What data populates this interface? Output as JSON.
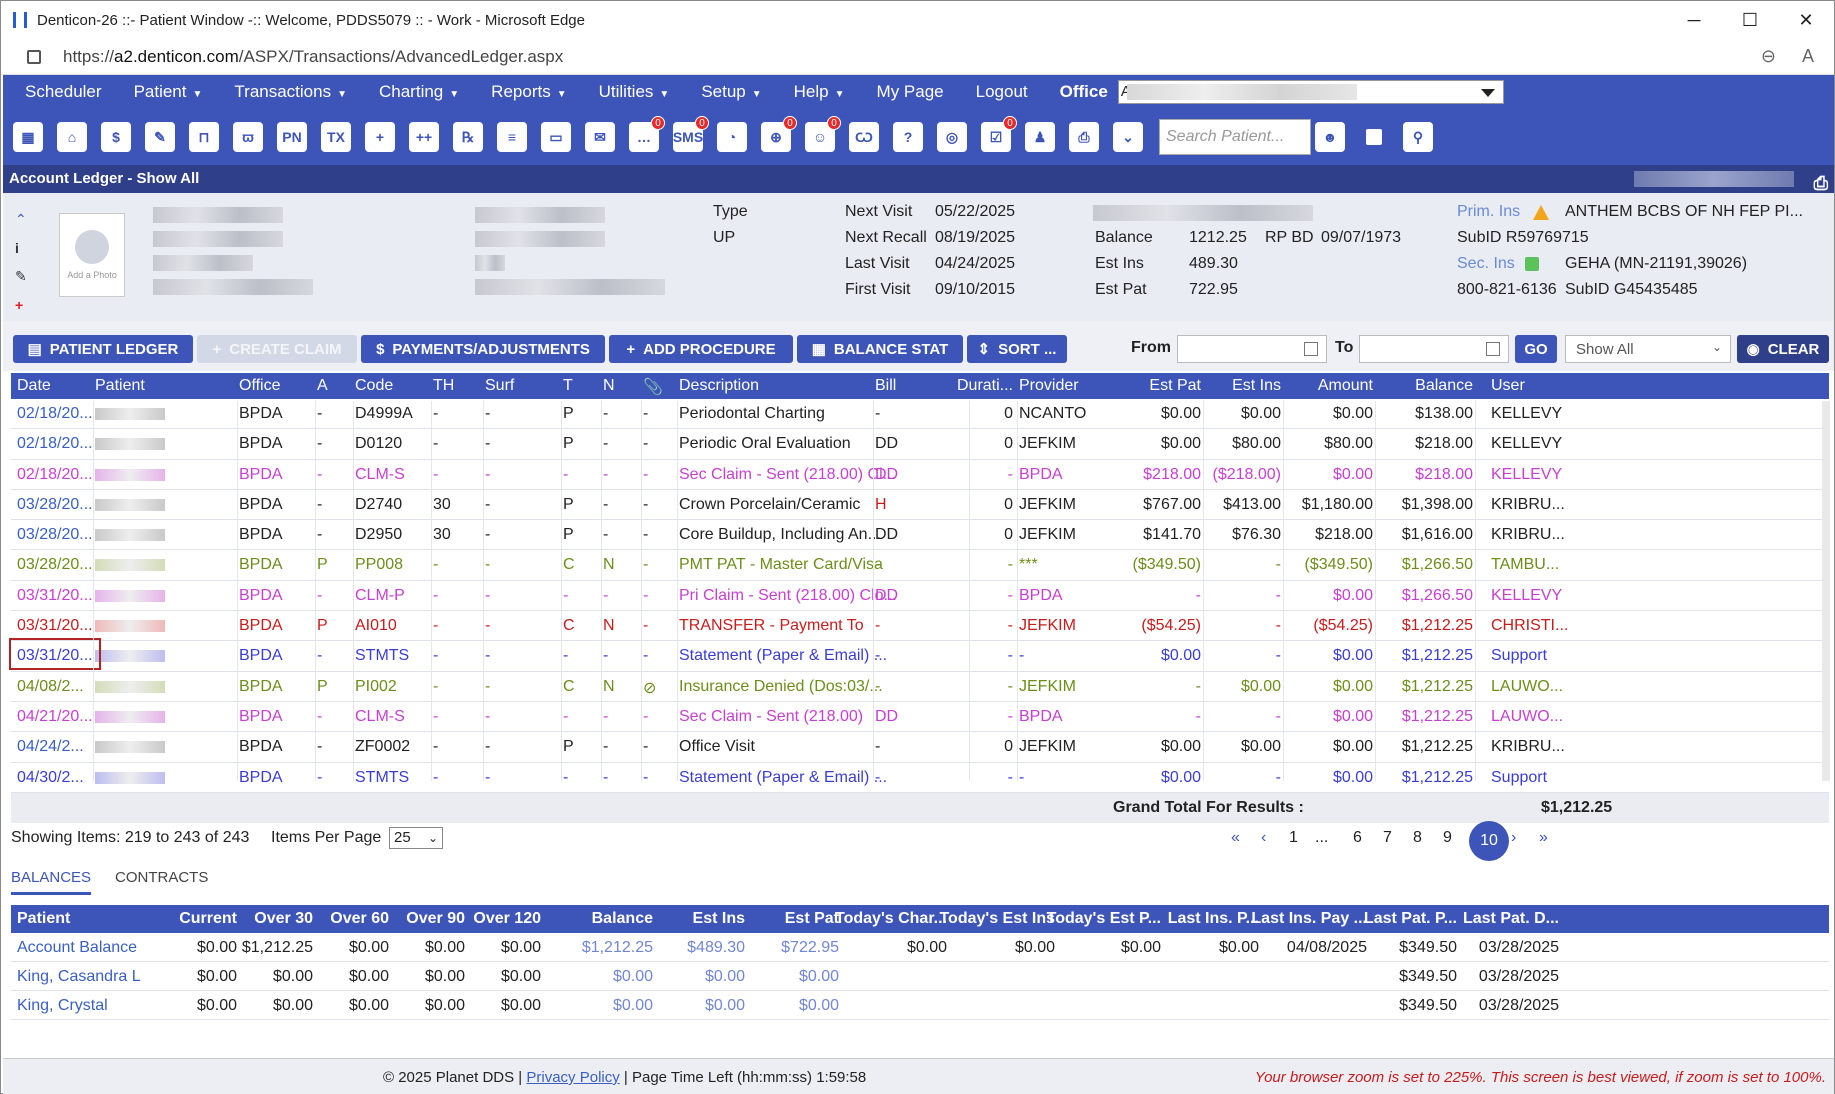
{
  "window": {
    "title": "Denticon-26 ::- Patient Window -:: Welcome, PDDS5079 :: - Work - Microsoft Edge",
    "controls": [
      "─",
      "☐",
      "✕"
    ]
  },
  "address": {
    "url_prefix": "https://",
    "url_host": "a2.denticon.com",
    "url_path": "/ASPX/Transactions/AdvancedLedger.aspx"
  },
  "menu": {
    "items": [
      {
        "label": "Scheduler",
        "caret": false
      },
      {
        "label": "Patient",
        "caret": true
      },
      {
        "label": "Transactions",
        "caret": true
      },
      {
        "label": "Charting",
        "caret": true
      },
      {
        "label": "Reports",
        "caret": true
      },
      {
        "label": "Utilities",
        "caret": true
      },
      {
        "label": "Setup",
        "caret": true
      },
      {
        "label": "Help",
        "caret": true
      },
      {
        "label": "My Page",
        "caret": false
      },
      {
        "label": "Logout",
        "caret": false
      }
    ],
    "office_label": "Office",
    "office_value": "A"
  },
  "toolbar": {
    "icons": [
      {
        "name": "calendar-icon",
        "glyph": "▦",
        "badge": ""
      },
      {
        "name": "home-icon",
        "glyph": "⌂",
        "badge": ""
      },
      {
        "name": "dollar-icon",
        "glyph": "$",
        "badge": ""
      },
      {
        "name": "chart-edit-icon",
        "glyph": "✎",
        "badge": ""
      },
      {
        "name": "tooth-chart-icon",
        "glyph": "⊓",
        "badge": ""
      },
      {
        "name": "perio-icon",
        "glyph": "ϖ",
        "badge": ""
      },
      {
        "name": "pn-icon",
        "glyph": "PN",
        "badge": ""
      },
      {
        "name": "tx-icon",
        "glyph": "TX",
        "badge": ""
      },
      {
        "name": "add-patient-icon",
        "glyph": "+",
        "badge": ""
      },
      {
        "name": "add-family-icon",
        "glyph": "++",
        "badge": ""
      },
      {
        "name": "rx-icon",
        "glyph": "℞",
        "badge": ""
      },
      {
        "name": "notes-icon",
        "glyph": "≡",
        "badge": ""
      },
      {
        "name": "scanner-icon",
        "glyph": "▭",
        "badge": ""
      },
      {
        "name": "mail-icon",
        "glyph": "✉",
        "badge": ""
      },
      {
        "name": "messages-icon",
        "glyph": "…",
        "badge": "0"
      },
      {
        "name": "sms-icon",
        "glyph": "SMS",
        "badge": "0"
      },
      {
        "name": "clock-icon",
        "glyph": "◔",
        "badge": ""
      },
      {
        "name": "web-icon",
        "glyph": "⊕",
        "badge": "0"
      },
      {
        "name": "support-icon",
        "glyph": "☺",
        "badge": "0"
      },
      {
        "name": "tooth-icon",
        "glyph": "Ѡ",
        "badge": ""
      },
      {
        "name": "tooth-help-icon",
        "glyph": "?",
        "badge": ""
      },
      {
        "name": "globe-icon",
        "glyph": "◎",
        "badge": ""
      },
      {
        "name": "forms-icon",
        "glyph": "☑",
        "badge": "0"
      },
      {
        "name": "family-icon",
        "glyph": "♟",
        "badge": ""
      },
      {
        "name": "print-icon",
        "glyph": "⎙",
        "badge": ""
      },
      {
        "name": "collapse-icon",
        "glyph": "⌄",
        "badge": ""
      }
    ],
    "search_placeholder": "Search Patient..."
  },
  "page_header": {
    "title": "Account Ledger - Show All"
  },
  "patient": {
    "photo_caption": "Add a Photo",
    "type_label": "Type",
    "type_value": "UP",
    "next_visit_label": "Next Visit",
    "next_visit": "05/22/2025",
    "next_recall_label": "Next Recall",
    "next_recall": "08/19/2025",
    "last_visit_label": "Last Visit",
    "last_visit": "04/24/2025",
    "first_visit_label": "First Visit",
    "first_visit": "09/10/2015",
    "balance_label": "Balance",
    "balance": "1212.25",
    "rp_bd_label": "RP BD",
    "rp_bd": "09/07/1973",
    "est_ins_label": "Est Ins",
    "est_ins": "489.30",
    "est_pat_label": "Est Pat",
    "est_pat": "722.95",
    "prim_ins_label": "Prim. Ins",
    "prim_ins": "ANTHEM BCBS OF NH FEP PI...",
    "subid1": "SubID R59769715",
    "sec_ins_label": "Sec. Ins",
    "sec_ins": "GEHA (MN-21191,39026)",
    "phone": "800-821-6136",
    "subid2": "SubID G45435485"
  },
  "actions": {
    "patient_ledger": "PATIENT LEDGER",
    "create_claim": "CREATE CLAIM",
    "payments": "PAYMENTS/ADJUSTMENTS",
    "add_procedure": "ADD PROCEDURE",
    "balance_stat": "BALANCE STAT",
    "sort": "SORT ...",
    "from_label": "From",
    "to_label": "To",
    "go": "GO",
    "show_value": "Show All",
    "clear": "CLEAR"
  },
  "ledger": {
    "columns": [
      "Date",
      "Patient",
      "Office",
      "A",
      "Code",
      "TH",
      "Surf",
      "T",
      "N",
      "📎",
      "Description",
      "Bill",
      "Durati...",
      "Provider",
      "Est Pat",
      "Est Ins",
      "Amount",
      "Balance",
      "User"
    ],
    "rows": [
      {
        "cls": "c-black",
        "pc": "#c9c9c9",
        "date": "02/18/20...",
        "office": "BPDA",
        "a": "-",
        "code": "D4999A",
        "th": "-",
        "surf": "-",
        "t": "P",
        "n": "-",
        "clip": "-",
        "desc": "Periodontal Charting",
        "bill": "-",
        "dur": "0",
        "prov": "NCANTO",
        "estpat": "$0.00",
        "estins": "$0.00",
        "amt": "$0.00",
        "bal": "$138.00",
        "user": "KELLEVY"
      },
      {
        "cls": "c-black",
        "pc": "#c9c9c9",
        "date": "02/18/20...",
        "office": "BPDA",
        "a": "-",
        "code": "D0120",
        "th": "-",
        "surf": "-",
        "t": "P",
        "n": "-",
        "clip": "-",
        "desc": "Periodic Oral Evaluation",
        "bill": "DD",
        "dur": "0",
        "prov": "JEFKIM",
        "estpat": "$0.00",
        "estins": "$80.00",
        "amt": "$80.00",
        "bal": "$218.00",
        "user": "KELLEVY"
      },
      {
        "cls": "c-mag",
        "pc": "#e6b3ec",
        "date": "02/18/20...",
        "office": "BPDA",
        "a": "-",
        "code": "CLM-S",
        "th": "-",
        "surf": "-",
        "t": "-",
        "n": "-",
        "clip": "-",
        "desc": "Sec Claim - Sent (218.00) Cl...",
        "bill": "DD",
        "dur": "-",
        "prov": "BPDA",
        "estpat": "$218.00",
        "estins": "($218.00)",
        "amt": "$0.00",
        "bal": "$218.00",
        "user": "KELLEVY"
      },
      {
        "cls": "c-black",
        "pc": "#c9c9c9",
        "date": "03/28/20...",
        "office": "BPDA",
        "a": "-",
        "code": "D2740",
        "th": "30",
        "surf": "-",
        "t": "P",
        "n": "-",
        "clip": "-",
        "desc": "Crown Porcelain/Ceramic",
        "bill": "H",
        "billred": true,
        "dur": "0",
        "prov": "JEFKIM",
        "estpat": "$767.00",
        "estins": "$413.00",
        "amt": "$1,180.00",
        "bal": "$1,398.00",
        "user": "KRIBRU..."
      },
      {
        "cls": "c-black",
        "pc": "#c9c9c9",
        "date": "03/28/20...",
        "office": "BPDA",
        "a": "-",
        "code": "D2950",
        "th": "30",
        "surf": "-",
        "t": "P",
        "n": "-",
        "clip": "-",
        "desc": "Core Buildup, Including An...",
        "bill": "DD",
        "dur": "0",
        "prov": "JEFKIM",
        "estpat": "$141.70",
        "estins": "$76.30",
        "amt": "$218.00",
        "bal": "$1,616.00",
        "user": "KRIBRU..."
      },
      {
        "cls": "c-grn",
        "pc": "#d3dcb8",
        "date": "03/28/20...",
        "office": "BPDA",
        "a": "P",
        "code": "PP008",
        "th": "-",
        "surf": "-",
        "t": "C",
        "n": "N",
        "clip": "-",
        "desc": "PMT PAT - Master Card/Visa",
        "bill": "-",
        "dur": "-",
        "prov": "***",
        "estpat": "($349.50)",
        "estins": "-",
        "amt": "($349.50)",
        "bal": "$1,266.50",
        "user": "TAMBU..."
      },
      {
        "cls": "c-mag",
        "pc": "#e6b3ec",
        "date": "03/31/20...",
        "office": "BPDA",
        "a": "-",
        "code": "CLM-P",
        "th": "-",
        "surf": "-",
        "t": "-",
        "n": "-",
        "clip": "-",
        "desc": "Pri Claim - Sent (218.00) Clo...",
        "bill": "DD",
        "dur": "-",
        "prov": "BPDA",
        "estpat": "-",
        "estins": "-",
        "amt": "$0.00",
        "bal": "$1,266.50",
        "user": "KELLEVY"
      },
      {
        "cls": "c-red",
        "pc": "#efb9b9",
        "date": "03/31/20...",
        "office": "BPDA",
        "a": "P",
        "code": "AI010",
        "th": "-",
        "surf": "-",
        "t": "C",
        "n": "N",
        "clip": "-",
        "desc": "TRANSFER - Payment To",
        "bill": "-",
        "dur": "-",
        "prov": "JEFKIM",
        "estpat": "($54.25)",
        "estins": "-",
        "amt": "($54.25)",
        "bal": "$1,212.25",
        "user": "CHRISTI..."
      },
      {
        "cls": "c-blu",
        "pc": "#bdbdf0",
        "date": "03/31/20...",
        "office": "BPDA",
        "a": "-",
        "code": "STMTS",
        "th": "-",
        "surf": "-",
        "t": "-",
        "n": "-",
        "clip": "-",
        "desc": "Statement (Paper & Email) ...",
        "bill": "-",
        "dur": "-",
        "prov": "-",
        "estpat": "$0.00",
        "estins": "-",
        "amt": "$0.00",
        "bal": "$1,212.25",
        "user": "Support"
      },
      {
        "cls": "c-grn",
        "pc": "#d3dcb8",
        "date": "04/08/2...",
        "office": "BPDA",
        "a": "P",
        "code": "PI002",
        "th": "-",
        "surf": "-",
        "t": "C",
        "n": "N",
        "clip": "⊘",
        "desc": "Insurance Denied (Dos:03/...",
        "bill": "-",
        "dur": "-",
        "prov": "JEFKIM",
        "estpat": "-",
        "estins": "$0.00",
        "amt": "$0.00",
        "bal": "$1,212.25",
        "user": "LAUWO..."
      },
      {
        "cls": "c-mag",
        "pc": "#e6b3ec",
        "date": "04/21/20...",
        "office": "BPDA",
        "a": "-",
        "code": "CLM-S",
        "th": "-",
        "surf": "-",
        "t": "-",
        "n": "-",
        "clip": "-",
        "desc": "Sec Claim - Sent (218.00)",
        "bill": "DD",
        "dur": "-",
        "prov": "BPDA",
        "estpat": "-",
        "estins": "-",
        "amt": "$0.00",
        "bal": "$1,212.25",
        "user": "LAUWO..."
      },
      {
        "cls": "c-black",
        "pc": "#c9c9c9",
        "date": "04/24/2...",
        "office": "BPDA",
        "a": "-",
        "code": "ZF0002",
        "th": "-",
        "surf": "-",
        "t": "P",
        "n": "-",
        "clip": "-",
        "desc": "Office Visit",
        "bill": "-",
        "dur": "0",
        "prov": "JEFKIM",
        "estpat": "$0.00",
        "estins": "$0.00",
        "amt": "$0.00",
        "bal": "$1,212.25",
        "user": "KRIBRU..."
      },
      {
        "cls": "c-blu",
        "pc": "#bdbdf0",
        "date": "04/30/2...",
        "office": "BPDA",
        "a": "-",
        "code": "STMTS",
        "th": "-",
        "surf": "-",
        "t": "-",
        "n": "-",
        "clip": "-",
        "desc": "Statement (Paper & Email) ...",
        "bill": "-",
        "dur": "-",
        "prov": "-",
        "estpat": "$0.00",
        "estins": "-",
        "amt": "$0.00",
        "bal": "$1,212.25",
        "user": "Support"
      }
    ],
    "grand_total_label": "Grand Total For Results :",
    "grand_total": "$1,212.25"
  },
  "paging": {
    "showing": "Showing Items: 219 to 243 of 243",
    "per_page_label": "Items Per Page",
    "per_page": "25",
    "pages": [
      "«",
      "‹",
      "1",
      "...",
      "6",
      "7",
      "8",
      "9",
      "10",
      "›",
      "»"
    ],
    "current": "10"
  },
  "tabs": {
    "balances": "BALANCES",
    "contracts": "CONTRACTS"
  },
  "balances": {
    "columns": [
      "Patient",
      "Current",
      "Over 30",
      "Over 60",
      "Over 90",
      "Over 120",
      "Balance",
      "Est Ins",
      "Est Pat",
      "Today's Char...",
      "Today's Est Ins",
      "Today's Est P...",
      "Last Ins. P...",
      "Last Ins. Pay ...",
      "Last Pat. P...",
      "Last Pat. D..."
    ],
    "rows": [
      {
        "patient": "Account Balance",
        "current": "$0.00",
        "o30": "$1,212.25",
        "o60": "$0.00",
        "o90": "$0.00",
        "o120": "$0.00",
        "bal": "$1,212.25",
        "estins": "$489.30",
        "estpat": "$722.95",
        "tchar": "$0.00",
        "testins": "$0.00",
        "testpat": "$0.00",
        "lip": "$0.00",
        "lipd": "04/08/2025",
        "lpp": "$349.50",
        "lpd": "03/28/2025"
      },
      {
        "patient": "King, Casandra L",
        "current": "$0.00",
        "o30": "$0.00",
        "o60": "$0.00",
        "o90": "$0.00",
        "o120": "$0.00",
        "bal": "$0.00",
        "estins": "$0.00",
        "estpat": "$0.00",
        "tchar": "",
        "testins": "",
        "testpat": "",
        "lip": "",
        "lipd": "",
        "lpp": "$349.50",
        "lpd": "03/28/2025"
      },
      {
        "patient": "King, Crystal",
        "current": "$0.00",
        "o30": "$0.00",
        "o60": "$0.00",
        "o90": "$0.00",
        "o120": "$0.00",
        "bal": "$0.00",
        "estins": "$0.00",
        "estpat": "$0.00",
        "tchar": "",
        "testins": "",
        "testpat": "",
        "lip": "",
        "lipd": "",
        "lpp": "$349.50",
        "lpd": "03/28/2025"
      }
    ]
  },
  "footer": {
    "copyright": "© 2025 Planet DDS |",
    "privacy": "Privacy Policy",
    "time_left": "| Page Time Left (hh:mm:ss) 1:59:58",
    "zoom_warning": "Your browser zoom is set to 225%. This screen is best viewed, if zoom is set to 100%."
  },
  "colors": {
    "brand": "#3d55b8",
    "header_dark": "#2f3f8a",
    "warning": "#c81c1c"
  }
}
